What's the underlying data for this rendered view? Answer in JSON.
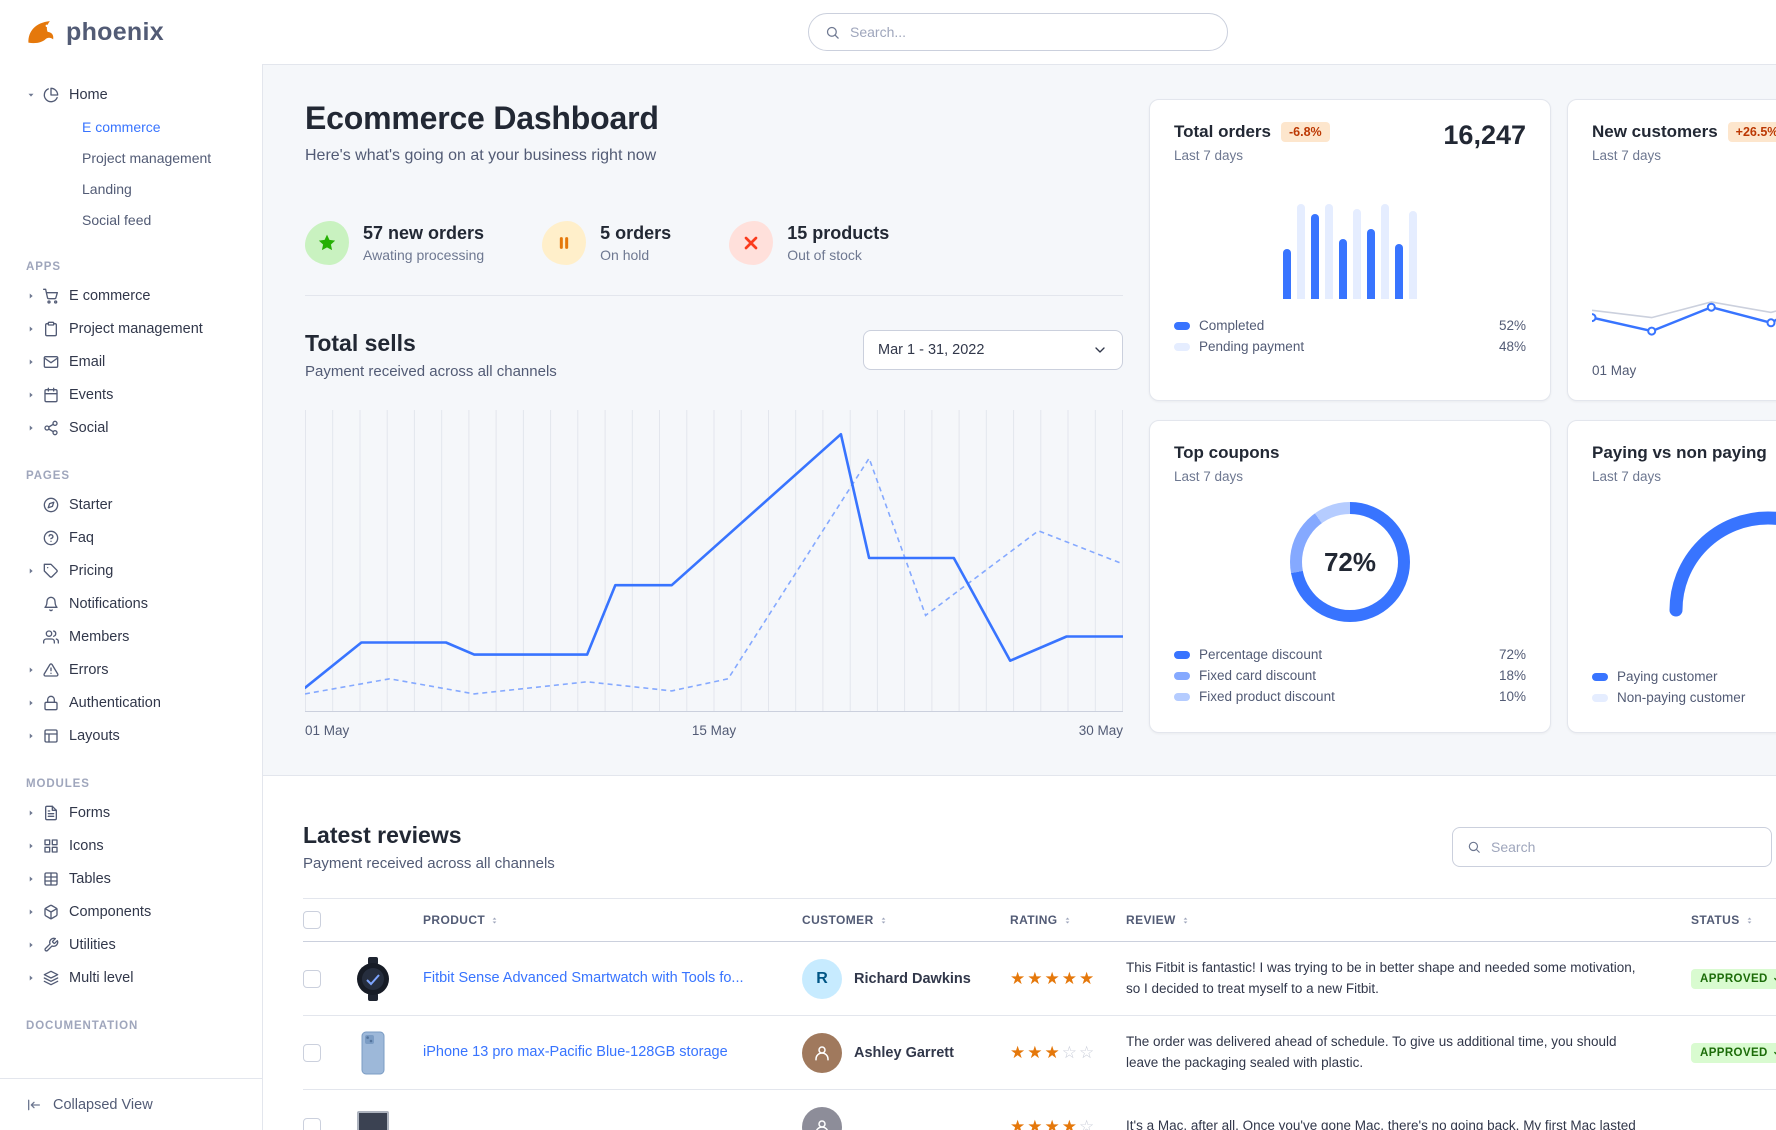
{
  "colors": {
    "primary": "#3874ff",
    "primary_light": "#85a9ff",
    "primary_subtle": "#e5edff",
    "hero_bg": "#f5f7fa",
    "border": "#e3e6ed",
    "text_dark": "#222834",
    "text_muted": "#6e7891",
    "warning_badge_bg": "#fde6cd",
    "warning_badge_text": "#bc3803",
    "success_badge_bg": "#d9fbd0",
    "success_badge_text": "#1c6c09",
    "star": "#e5780b"
  },
  "topbar": {
    "brand": "phoenix",
    "search_placeholder": "Search..."
  },
  "sidebar": {
    "home": {
      "label": "Home",
      "icon": "pie-chart",
      "children": [
        {
          "label": "E commerce",
          "active": true
        },
        {
          "label": "Project management",
          "active": false
        },
        {
          "label": "Landing",
          "active": false
        },
        {
          "label": "Social feed",
          "active": false
        }
      ]
    },
    "sections": [
      {
        "title": "APPS",
        "items": [
          {
            "label": "E commerce",
            "icon": "cart",
            "caret": true
          },
          {
            "label": "Project management",
            "icon": "clipboard",
            "caret": true
          },
          {
            "label": "Email",
            "icon": "mail",
            "caret": true
          },
          {
            "label": "Events",
            "icon": "calendar",
            "caret": true
          },
          {
            "label": "Social",
            "icon": "share",
            "caret": true
          }
        ]
      },
      {
        "title": "PAGES",
        "items": [
          {
            "label": "Starter",
            "icon": "compass",
            "caret": false
          },
          {
            "label": "Faq",
            "icon": "help",
            "caret": false
          },
          {
            "label": "Pricing",
            "icon": "tag",
            "caret": true
          },
          {
            "label": "Notifications",
            "icon": "bell",
            "caret": false
          },
          {
            "label": "Members",
            "icon": "users",
            "caret": false
          },
          {
            "label": "Errors",
            "icon": "alert",
            "caret": true
          },
          {
            "label": "Authentication",
            "icon": "lock",
            "caret": true
          },
          {
            "label": "Layouts",
            "icon": "layout",
            "caret": true
          }
        ]
      },
      {
        "title": "MODULES",
        "items": [
          {
            "label": "Forms",
            "icon": "form",
            "caret": true
          },
          {
            "label": "Icons",
            "icon": "grid",
            "caret": true
          },
          {
            "label": "Tables",
            "icon": "table",
            "caret": true
          },
          {
            "label": "Components",
            "icon": "package",
            "caret": true
          },
          {
            "label": "Utilities",
            "icon": "tool",
            "caret": true
          },
          {
            "label": "Multi level",
            "icon": "layers",
            "caret": true
          }
        ]
      },
      {
        "title": "DOCUMENTATION",
        "items": []
      }
    ],
    "collapse": {
      "label": "Collapsed View",
      "icon": "collapse"
    }
  },
  "page": {
    "title": "Ecommerce Dashboard",
    "subtitle": "Here's what's going on at your business right now"
  },
  "stats": [
    {
      "value": "57 new orders",
      "label": "Awating processing",
      "icon": "star",
      "blob_bg": "#c9f2c0",
      "icon_color": "#25b003"
    },
    {
      "value": "5 orders",
      "label": "On hold",
      "icon": "pause",
      "blob_bg": "#ffefca",
      "icon_color": "#e5780b"
    },
    {
      "value": "15 products",
      "label": "Out of stock",
      "icon": "x",
      "blob_bg": "#ffe0db",
      "icon_color": "#fa3b1d"
    }
  ],
  "total_sells": {
    "title": "Total sells",
    "subtitle": "Payment received across all channels",
    "date_range": "Mar 1 - 31, 2022"
  },
  "cards": {
    "total_orders": {
      "title": "Total orders",
      "badge": "-6.8%",
      "period": "Last 7 days",
      "value": "16,247",
      "legend": [
        {
          "label": "Completed",
          "value": "52%",
          "color": "#3874ff"
        },
        {
          "label": "Pending payment",
          "value": "48%",
          "color": "#e5edff"
        }
      ]
    },
    "new_customers": {
      "title": "New customers",
      "badge": "+26.5%",
      "period": "Last 7 days",
      "x_label": "01 May"
    },
    "top_coupons": {
      "title": "Top coupons",
      "period": "Last 7 days",
      "center_value": "72%",
      "legend": [
        {
          "label": "Percentage discount",
          "value": "72%",
          "color": "#3874ff"
        },
        {
          "label": "Fixed card discount",
          "value": "18%",
          "color": "#85a9ff"
        },
        {
          "label": "Fixed product discount",
          "value": "10%",
          "color": "#b5ccff"
        }
      ]
    },
    "paying": {
      "title": "Paying vs non paying",
      "period": "Last 7 days",
      "legend": [
        {
          "label": "Paying customer",
          "color": "#3874ff"
        },
        {
          "label": "Non-paying customer",
          "color": "#e5edff"
        }
      ]
    }
  },
  "reviews": {
    "title": "Latest reviews",
    "subtitle": "Payment received across all channels",
    "search_placeholder": "Search",
    "columns": [
      {
        "label": "PRODUCT",
        "sortable": true
      },
      {
        "label": "CUSTOMER",
        "sortable": true
      },
      {
        "label": "RATING",
        "sortable": true
      },
      {
        "label": "REVIEW",
        "sortable": true
      },
      {
        "label": "STATUS",
        "sortable": true
      }
    ],
    "rows": [
      {
        "product": "Fitbit Sense Advanced Smartwatch with Tools fo...",
        "thumb": "watch",
        "customer": "Richard Dawkins",
        "avatar": {
          "style": "initial",
          "text": "R",
          "bg": "#c7ebff",
          "color": "#005585"
        },
        "rating": 5,
        "review": "This Fitbit is fantastic! I was trying to be in better shape and needed some motivation, so I decided to treat myself to a new Fitbit.",
        "status": "APPROVED"
      },
      {
        "product": "iPhone 13 pro max-Pacific Blue-128GB storage",
        "thumb": "phone",
        "customer": "Ashley Garrett",
        "avatar": {
          "style": "photo",
          "text": "",
          "bg": "#a0795d",
          "color": "#ffffff"
        },
        "rating": 3,
        "review": "The order was delivered ahead of schedule. To give us additional time, you should leave the packaging sealed with plastic.",
        "status": "APPROVED"
      },
      {
        "product": "",
        "thumb": "laptop",
        "customer": "",
        "avatar": {
          "style": "photo",
          "text": "",
          "bg": "#8d8d99",
          "color": "#ffffff"
        },
        "rating": 4,
        "review": "It's a Mac, after all. Once you've gone Mac, there's no going back. My first Mac lasted",
        "status": ""
      }
    ]
  },
  "chart_data": [
    {
      "id": "total_sells",
      "type": "line",
      "title": "Total sells",
      "x_ticks": [
        "01 May",
        "15 May",
        "30 May"
      ],
      "x_range_days": [
        1,
        30
      ],
      "y_unit": "relative-percent-0-100",
      "grid": "vertical",
      "gridline_count": 31,
      "series": [
        {
          "name": "current-period",
          "style": "solid",
          "color": "#3874ff",
          "points": [
            [
              1,
              8
            ],
            [
              3,
              23
            ],
            [
              6,
              23
            ],
            [
              7,
              19
            ],
            [
              11,
              19
            ],
            [
              12,
              42
            ],
            [
              14,
              42
            ],
            [
              20,
              92
            ],
            [
              21,
              51
            ],
            [
              24,
              51
            ],
            [
              26,
              17
            ],
            [
              28,
              25
            ],
            [
              30,
              25
            ]
          ]
        },
        {
          "name": "previous-period",
          "style": "dashed",
          "color": "#85a9ff",
          "points": [
            [
              1,
              6
            ],
            [
              4,
              11
            ],
            [
              7,
              6
            ],
            [
              11,
              10
            ],
            [
              14,
              7
            ],
            [
              16,
              11
            ],
            [
              21,
              84
            ],
            [
              23,
              32
            ],
            [
              27,
              60
            ],
            [
              30,
              49
            ]
          ]
        }
      ]
    },
    {
      "id": "total_orders_bars",
      "type": "bar",
      "values": [
        50,
        95,
        85,
        95,
        60,
        90,
        70,
        95,
        55,
        88
      ],
      "tones": [
        "primary",
        "subtle",
        "primary",
        "subtle",
        "primary",
        "subtle",
        "primary",
        "subtle",
        "primary",
        "subtle"
      ],
      "legend": [
        {
          "label": "Completed",
          "value": 52
        },
        {
          "label": "Pending payment",
          "value": 48
        }
      ]
    },
    {
      "id": "new_customers",
      "type": "line",
      "x_first_label": "01 May",
      "series": [
        {
          "name": "current",
          "color": "#3874ff",
          "markers": true,
          "values": [
            35,
            22,
            45,
            30,
            62,
            40,
            72
          ]
        },
        {
          "name": "previous",
          "color": "#cbd0dd",
          "markers": false,
          "values": [
            42,
            35,
            50,
            40,
            55,
            45,
            58
          ]
        }
      ]
    },
    {
      "id": "top_coupons_donut",
      "type": "pie",
      "center_label": "72%",
      "segments": [
        {
          "label": "Percentage discount",
          "value": 72,
          "color": "#3874ff"
        },
        {
          "label": "Fixed card discount",
          "value": 18,
          "color": "#85a9ff"
        },
        {
          "label": "Fixed product discount",
          "value": 10,
          "color": "#b5ccff"
        }
      ]
    },
    {
      "id": "paying_gauge",
      "type": "pie",
      "variant": "half-donut",
      "paying_pct_estimate": 66,
      "colors": {
        "paying": "#3874ff",
        "non_paying": "#e5edff"
      }
    }
  ]
}
